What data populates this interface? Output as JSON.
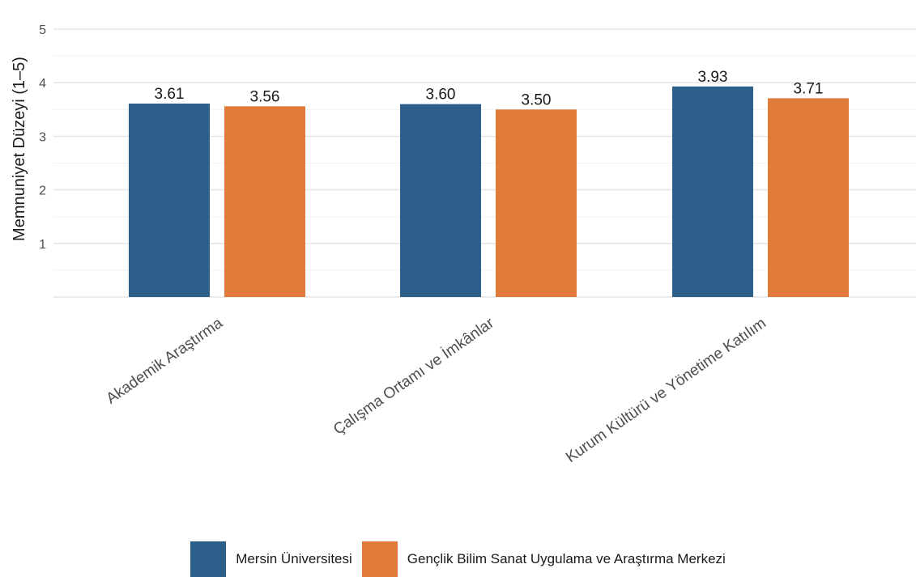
{
  "chart_data": {
    "type": "bar",
    "title": "",
    "xlabel": "",
    "ylabel": "Memnuniyet Düzeyi (1–5)",
    "ylim": [
      0,
      5.5
    ],
    "yticks": [
      1,
      2,
      3,
      4,
      5
    ],
    "grid": true,
    "legend_position": "bottom",
    "categories": [
      "Akademik Araştırma",
      "Çalışma Ortamı ve İmkânlar",
      "Kurum Kültürü ve Yönetime Katılım"
    ],
    "series": [
      {
        "name": "Mersin Üniversitesi",
        "color": "#2c5f89",
        "values": [
          3.61,
          3.6,
          3.93
        ],
        "labels": [
          "3.61",
          "3.60",
          "3.93"
        ]
      },
      {
        "name": "Gençlik Bilim Sanat Uygulama ve Araştırma Merkezi",
        "color": "#e07b39",
        "values": [
          3.56,
          3.5,
          3.71
        ],
        "labels": [
          "3.56",
          "3.50",
          "3.71"
        ]
      }
    ]
  }
}
